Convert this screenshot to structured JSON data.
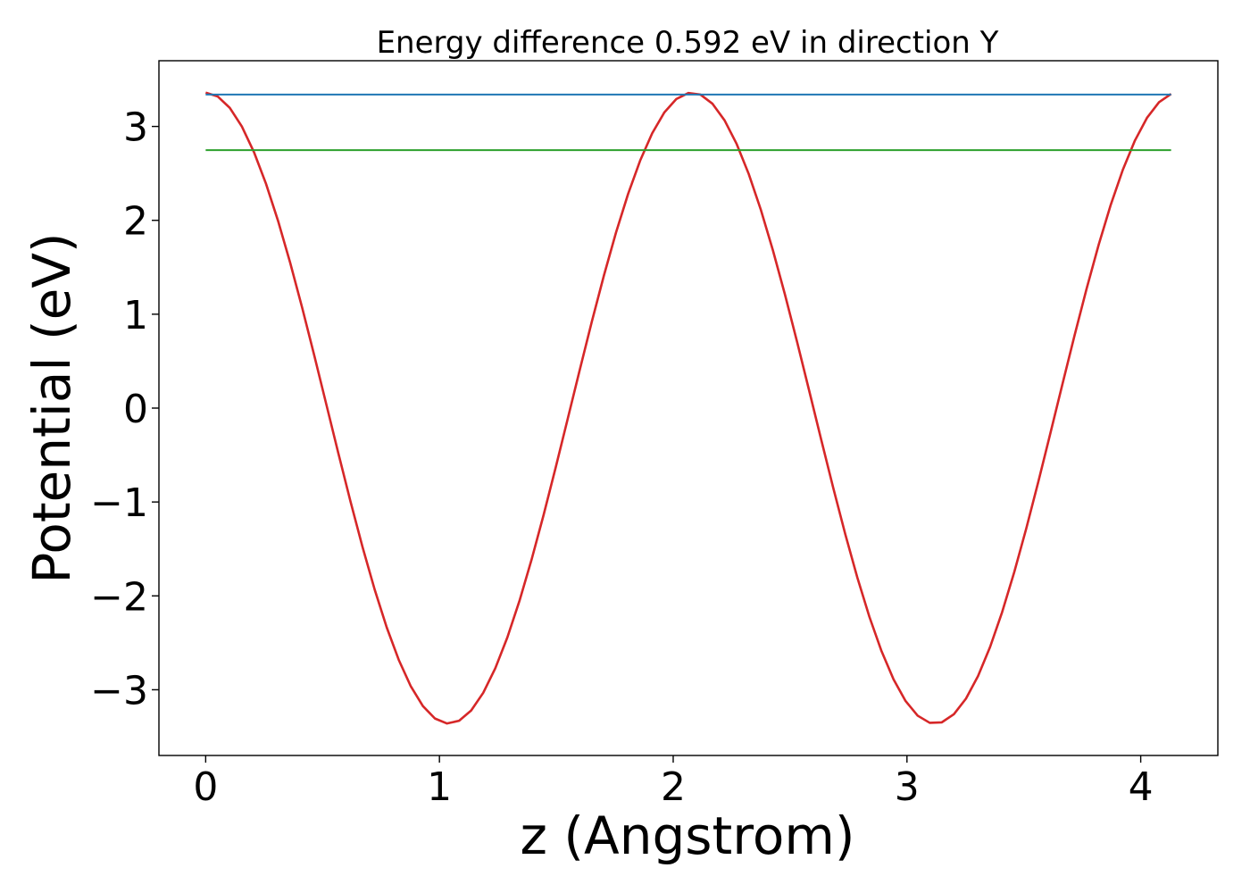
{
  "chart_data": {
    "type": "line",
    "title": "Energy difference 0.592 eV in direction Y",
    "xlabel": "z (Angstrom)",
    "ylabel": "Potential (eV)",
    "xlim": [
      -0.2,
      4.33
    ],
    "ylim": [
      -3.7,
      3.7
    ],
    "xticks": [
      0,
      1,
      2,
      3,
      4
    ],
    "xtick_labels": [
      "0",
      "1",
      "2",
      "3",
      "4"
    ],
    "yticks": [
      -3,
      -2,
      -1,
      0,
      1,
      2,
      3
    ],
    "ytick_labels": [
      "−3",
      "−2",
      "−1",
      "0",
      "1",
      "2",
      "3"
    ],
    "grid": false,
    "legend": "none",
    "x_start": 0,
    "x_end": 4.13,
    "series": [
      {
        "color": "#d62728",
        "kind": "curve",
        "amplitude": 3.36,
        "period": 2.08,
        "x_min": 0,
        "x_max": 4.13,
        "samples": 80
      },
      {
        "color": "#1f77b4",
        "kind": "hline",
        "y": 3.34,
        "x_min": 0,
        "x_max": 4.13
      },
      {
        "color": "#2ca02c",
        "kind": "hline",
        "y": 2.748,
        "x_min": 0,
        "x_max": 4.13
      }
    ]
  }
}
